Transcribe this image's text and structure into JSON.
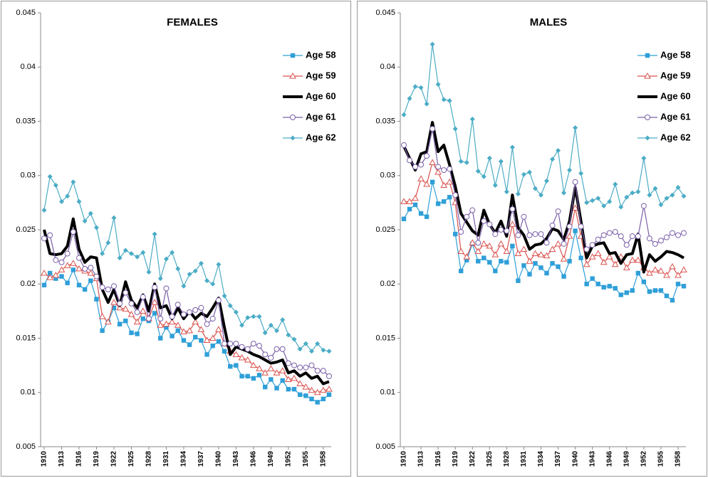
{
  "chart_data": [
    {
      "type": "line",
      "title": "FEMALES",
      "categories": [
        1910,
        null,
        null,
        1913,
        null,
        null,
        1916,
        null,
        null,
        1919,
        null,
        null,
        1922,
        null,
        null,
        1925,
        null,
        null,
        1928,
        null,
        null,
        1931,
        null,
        null,
        1934,
        null,
        null,
        1937,
        null,
        null,
        1940,
        null,
        null,
        1943,
        null,
        null,
        1946,
        null,
        null,
        1949,
        null,
        null,
        1952,
        null,
        null,
        1955,
        null,
        null,
        1958,
        null
      ],
      "ylim": [
        0.005,
        0.045
      ],
      "yticks": [
        0.005,
        0.01,
        0.015,
        0.02,
        0.025,
        0.03,
        0.035,
        0.04,
        0.045
      ],
      "grid": false,
      "legend": "right",
      "series": [
        {
          "name": "Age 58",
          "color": "#2f9fd8",
          "marker": "square",
          "values": [
            0.0199,
            0.021,
            0.0205,
            0.0207,
            0.0201,
            0.0213,
            0.0199,
            0.0195,
            0.0203,
            0.0186,
            0.0157,
            0.0165,
            0.0178,
            0.0163,
            0.0166,
            0.0155,
            0.0154,
            0.0168,
            0.0166,
            0.0173,
            0.015,
            0.016,
            0.0152,
            0.0157,
            0.0148,
            0.0144,
            0.0151,
            0.0148,
            0.0135,
            0.0143,
            0.0147,
            0.0138,
            0.0124,
            0.0125,
            0.0115,
            0.0115,
            0.0113,
            0.0116,
            0.0105,
            0.0112,
            0.0104,
            0.0111,
            0.0103,
            0.0103,
            0.0098,
            0.0097,
            0.0094,
            0.0091,
            0.0094,
            0.0098
          ]
        },
        {
          "name": "Age 59",
          "color": "#d9534f",
          "marker": "triangle",
          "values": [
            0.021,
            0.0206,
            0.0208,
            0.0213,
            0.0217,
            0.0219,
            0.0214,
            0.0212,
            0.021,
            0.0205,
            0.017,
            0.0165,
            0.0183,
            0.0178,
            0.0177,
            0.0172,
            0.0165,
            0.0175,
            0.0168,
            0.0183,
            0.0162,
            0.0163,
            0.0165,
            0.0162,
            0.0156,
            0.0157,
            0.0165,
            0.0158,
            0.0148,
            0.015,
            0.0158,
            0.0145,
            0.0138,
            0.0135,
            0.0132,
            0.013,
            0.0125,
            0.0122,
            0.0118,
            0.0122,
            0.0118,
            0.012,
            0.0112,
            0.0113,
            0.0108,
            0.0105,
            0.0102,
            0.01,
            0.0102,
            0.0103
          ]
        },
        {
          "name": "Age 60",
          "color": "#000000",
          "marker": "none",
          "values": [
            0.025,
            0.0228,
            0.0227,
            0.0228,
            0.0235,
            0.026,
            0.0232,
            0.022,
            0.0225,
            0.0224,
            0.0195,
            0.0183,
            0.0195,
            0.018,
            0.0202,
            0.0185,
            0.0178,
            0.019,
            0.0175,
            0.02,
            0.0178,
            0.018,
            0.0168,
            0.0178,
            0.0168,
            0.0175,
            0.0168,
            0.0173,
            0.017,
            0.0178,
            0.0187,
            0.016,
            0.0135,
            0.0142,
            0.014,
            0.0138,
            0.0135,
            0.0133,
            0.013,
            0.0127,
            0.0128,
            0.013,
            0.0118,
            0.012,
            0.0115,
            0.0118,
            0.0113,
            0.0115,
            0.0108,
            0.011
          ]
        },
        {
          "name": "Age 61",
          "color": "#7b5fa8",
          "marker": "circle",
          "values": [
            0.0242,
            0.0245,
            0.0222,
            0.022,
            0.0228,
            0.0248,
            0.0224,
            0.0214,
            0.0215,
            0.0207,
            0.0197,
            0.0195,
            0.0198,
            0.0182,
            0.0192,
            0.0182,
            0.0174,
            0.0188,
            0.0168,
            0.0197,
            0.0168,
            0.0196,
            0.017,
            0.0181,
            0.0172,
            0.0174,
            0.0176,
            0.0178,
            0.0163,
            0.0168,
            0.0185,
            0.0145,
            0.0145,
            0.0145,
            0.0142,
            0.014,
            0.0145,
            0.0143,
            0.0135,
            0.0132,
            0.014,
            0.014,
            0.0127,
            0.0125,
            0.0123,
            0.0123,
            0.0125,
            0.012,
            0.012,
            0.0115
          ]
        },
        {
          "name": "Age 62",
          "color": "#4bacc6",
          "marker": "diamond",
          "values": [
            0.0268,
            0.0299,
            0.0291,
            0.0276,
            0.0281,
            0.0294,
            0.0276,
            0.0258,
            0.0265,
            0.0252,
            0.0228,
            0.0238,
            0.0261,
            0.0224,
            0.0231,
            0.0228,
            0.0225,
            0.0229,
            0.0211,
            0.0246,
            0.0205,
            0.0223,
            0.0229,
            0.0214,
            0.0198,
            0.0209,
            0.0212,
            0.0219,
            0.0203,
            0.02,
            0.0218,
            0.0189,
            0.018,
            0.0174,
            0.0162,
            0.0169,
            0.017,
            0.017,
            0.0155,
            0.0162,
            0.0157,
            0.0167,
            0.0153,
            0.0149,
            0.014,
            0.0145,
            0.0138,
            0.0145,
            0.0139,
            0.0138
          ]
        }
      ]
    },
    {
      "type": "line",
      "title": "MALES",
      "categories": [
        1910,
        null,
        null,
        1913,
        null,
        null,
        1916,
        null,
        null,
        1919,
        null,
        null,
        1922,
        null,
        null,
        1925,
        null,
        null,
        1928,
        null,
        null,
        1931,
        null,
        null,
        1934,
        null,
        null,
        1937,
        null,
        null,
        1940,
        null,
        null,
        1943,
        null,
        null,
        1946,
        null,
        null,
        1949,
        null,
        null,
        1952,
        null,
        null,
        1955,
        null,
        null,
        1958,
        null
      ],
      "ylim": [
        0.005,
        0.045
      ],
      "yticks": [
        0.005,
        0.01,
        0.015,
        0.02,
        0.025,
        0.03,
        0.035,
        0.04,
        0.045
      ],
      "grid": false,
      "legend": "right",
      "series": [
        {
          "name": "Age 58",
          "color": "#2f9fd8",
          "marker": "square",
          "values": [
            0.026,
            0.0269,
            0.0273,
            0.0265,
            0.0262,
            0.0294,
            0.0274,
            0.0276,
            0.028,
            0.0246,
            0.0212,
            0.0222,
            0.0237,
            0.0221,
            0.0224,
            0.022,
            0.0212,
            0.0221,
            0.022,
            0.0235,
            0.0203,
            0.0217,
            0.0209,
            0.0219,
            0.0215,
            0.021,
            0.0219,
            0.0216,
            0.0207,
            0.0221,
            0.0249,
            0.0224,
            0.02,
            0.0205,
            0.02,
            0.0197,
            0.0198,
            0.0196,
            0.019,
            0.0192,
            0.0194,
            0.021,
            0.0202,
            0.0193,
            0.0194,
            0.0194,
            0.0189,
            0.0185,
            0.02,
            0.0198
          ]
        },
        {
          "name": "Age 59",
          "color": "#d9534f",
          "marker": "triangle",
          "values": [
            0.0276,
            0.0276,
            0.0279,
            0.0297,
            0.0292,
            0.0312,
            0.0303,
            0.0291,
            0.0294,
            0.0275,
            0.023,
            0.0225,
            0.0238,
            0.023,
            0.0237,
            0.0235,
            0.0227,
            0.0237,
            0.023,
            0.0255,
            0.0228,
            0.0232,
            0.0221,
            0.0228,
            0.0227,
            0.0226,
            0.0232,
            0.0237,
            0.0223,
            0.0244,
            0.027,
            0.0244,
            0.0218,
            0.0225,
            0.0228,
            0.022,
            0.0225,
            0.0218,
            0.0225,
            0.0215,
            0.0222,
            0.0222,
            0.0215,
            0.021,
            0.0213,
            0.0212,
            0.0208,
            0.0216,
            0.0208,
            0.0213
          ]
        },
        {
          "name": "Age 60",
          "color": "#000000",
          "marker": "none",
          "values": [
            0.0327,
            0.0316,
            0.0305,
            0.032,
            0.0322,
            0.0349,
            0.0322,
            0.0328,
            0.031,
            0.029,
            0.0265,
            0.0257,
            0.0249,
            0.0245,
            0.0268,
            0.0255,
            0.0247,
            0.0258,
            0.0244,
            0.0282,
            0.0252,
            0.0245,
            0.0232,
            0.0236,
            0.0237,
            0.0242,
            0.0251,
            0.0249,
            0.0241,
            0.0258,
            0.0289,
            0.0258,
            0.0224,
            0.0235,
            0.0237,
            0.0238,
            0.0228,
            0.0229,
            0.0219,
            0.0227,
            0.0228,
            0.0246,
            0.0211,
            0.0227,
            0.0221,
            0.0225,
            0.023,
            0.0229,
            0.0227,
            0.0224
          ]
        },
        {
          "name": "Age 61",
          "color": "#7b5fa8",
          "marker": "circle",
          "values": [
            0.0328,
            0.0314,
            0.0308,
            0.031,
            0.0318,
            0.0343,
            0.0308,
            0.0305,
            0.0306,
            0.0282,
            0.0248,
            0.0262,
            0.0268,
            0.0238,
            0.0258,
            0.0255,
            0.0246,
            0.025,
            0.0249,
            0.0269,
            0.0245,
            0.0262,
            0.0245,
            0.0246,
            0.0246,
            0.0238,
            0.0254,
            0.0267,
            0.0237,
            0.0253,
            0.0294,
            0.0253,
            0.0232,
            0.0236,
            0.0241,
            0.0245,
            0.0247,
            0.0248,
            0.0244,
            0.0236,
            0.0244,
            0.0244,
            0.0272,
            0.0242,
            0.0237,
            0.024,
            0.0243,
            0.0247,
            0.0245,
            0.0247
          ]
        },
        {
          "name": "Age 62",
          "color": "#4bacc6",
          "marker": "diamond",
          "values": [
            0.0356,
            0.0371,
            0.0382,
            0.0381,
            0.0366,
            0.0421,
            0.0384,
            0.037,
            0.0369,
            0.0343,
            0.0313,
            0.0312,
            0.0352,
            0.0304,
            0.0299,
            0.0316,
            0.0291,
            0.0313,
            0.0285,
            0.0326,
            0.0283,
            0.0301,
            0.0303,
            0.0288,
            0.0282,
            0.0295,
            0.0315,
            0.0323,
            0.0284,
            0.0305,
            0.0344,
            0.0302,
            0.0275,
            0.0277,
            0.0279,
            0.0272,
            0.0276,
            0.0292,
            0.0271,
            0.028,
            0.0284,
            0.0285,
            0.0316,
            0.0282,
            0.0288,
            0.0273,
            0.0279,
            0.0282,
            0.0289,
            0.0281
          ]
        }
      ]
    }
  ]
}
